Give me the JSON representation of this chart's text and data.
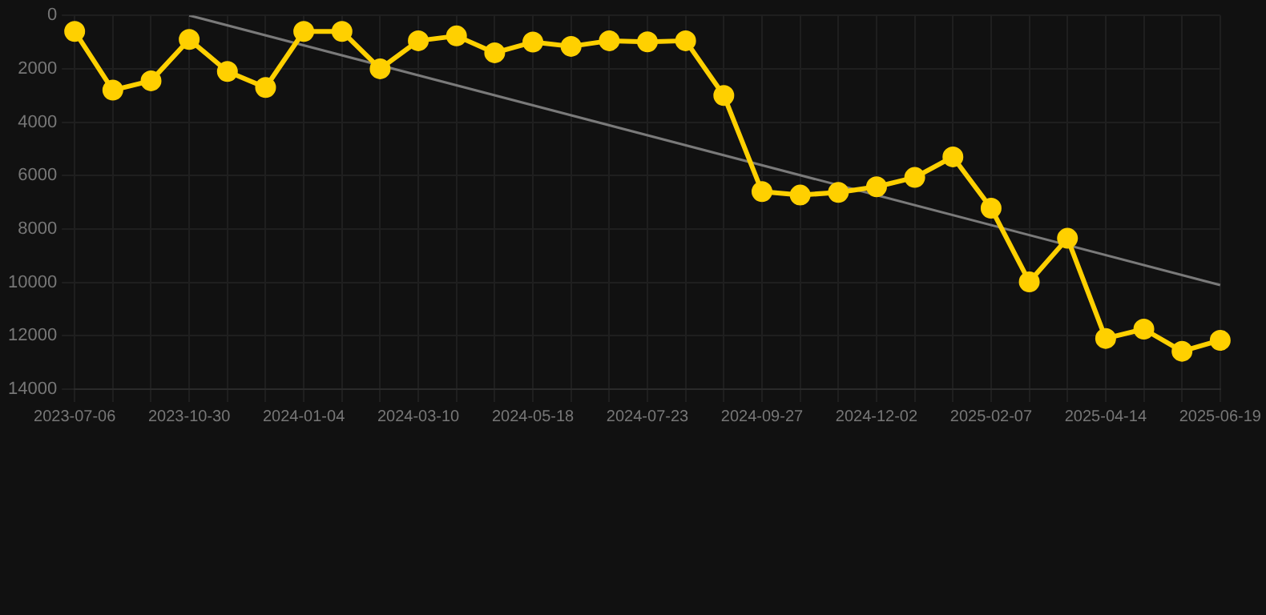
{
  "chart_data": {
    "type": "line",
    "categories": [
      "2023-07-06",
      null,
      null,
      "2023-10-30",
      null,
      null,
      "2024-01-04",
      null,
      null,
      "2024-03-10",
      null,
      null,
      "2024-05-18",
      null,
      null,
      "2024-07-23",
      null,
      null,
      "2024-09-27",
      null,
      null,
      "2024-12-02",
      null,
      null,
      "2025-02-07",
      null,
      null,
      "2025-04-14",
      null,
      null,
      "2025-06-19"
    ],
    "series": [
      {
        "color": "#ffd000",
        "values": [
          600,
          2800,
          2450,
          900,
          2100,
          2700,
          600,
          600,
          2000,
          950,
          770,
          1400,
          1000,
          1160,
          950,
          990,
          950,
          3000,
          6600,
          6730,
          6630,
          6420,
          6070,
          5300,
          7220,
          9980,
          8350,
          12100,
          11750,
          12580,
          12170
        ]
      },
      {
        "color": "#7a7a7a",
        "marker": "none",
        "values": [
          null,
          null,
          null,
          0,
          null,
          null,
          null,
          null,
          null,
          null,
          null,
          null,
          null,
          null,
          null,
          null,
          null,
          null,
          null,
          null,
          null,
          null,
          null,
          null,
          null,
          null,
          null,
          null,
          null,
          null,
          10100
        ]
      }
    ],
    "ylim": [
      14000,
      0
    ],
    "yticks": [
      0,
      2000,
      4000,
      6000,
      8000,
      10000,
      12000,
      14000
    ],
    "grid": true,
    "marker": "circle",
    "legend": false
  }
}
